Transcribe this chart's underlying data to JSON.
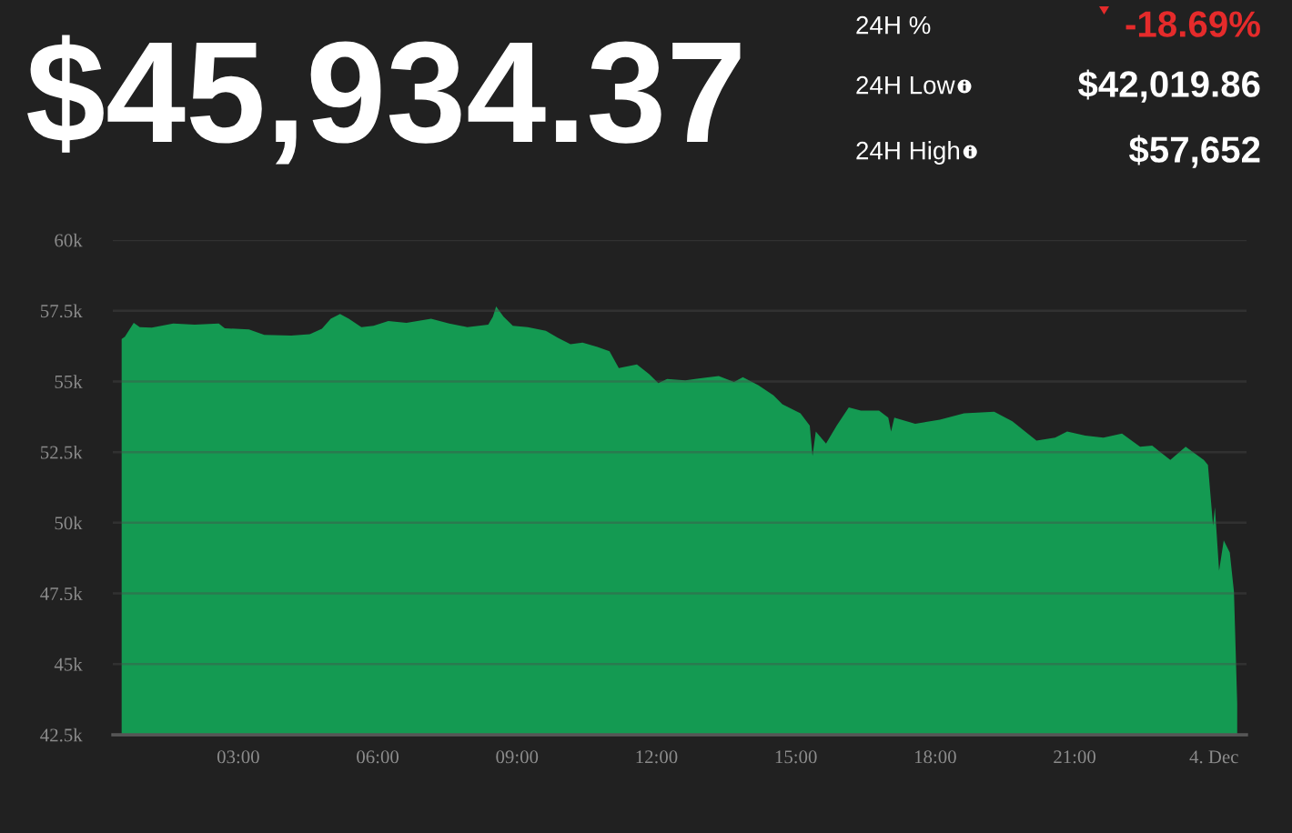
{
  "chart_data": {
    "type": "area",
    "title": "$45,934.37",
    "annotations": [
      "24H %",
      "-18.69%",
      "24H Low",
      "$42,019.86",
      "24H High",
      "$57,652"
    ],
    "series": [
      {
        "color": "#149a52",
        "x": [
          0.49,
          0.56,
          0.75,
          0.88,
          1.14,
          1.6,
          2.06,
          2.58,
          2.71,
          3.23,
          3.56,
          4.14,
          4.54,
          4.8,
          4.99,
          5.19,
          5.38,
          5.65,
          5.91,
          6.23,
          6.62,
          7.15,
          7.54,
          7.93,
          8.38,
          8.48,
          8.55,
          8.71,
          8.91,
          9.23,
          9.62,
          9.88,
          10.15,
          10.41,
          10.73,
          10.99,
          11.19,
          11.58,
          11.84,
          12.04,
          12.23,
          12.62,
          13.02,
          13.34,
          13.67,
          13.86,
          14.19,
          14.52,
          14.71,
          15.1,
          15.3,
          15.36,
          15.43,
          15.65,
          15.88,
          16.14,
          16.4,
          16.79,
          16.99,
          17.05,
          17.12,
          17.57,
          18.1,
          18.62,
          19.27,
          19.66,
          20.18,
          20.58,
          20.84,
          21.23,
          21.62,
          22.02,
          22.41,
          22.67,
          23.06,
          23.39,
          23.78,
          23.87,
          23.98,
          24.02,
          24.11,
          24.21,
          24.34,
          24.43,
          24.5
        ],
        "values": [
          56500,
          56580,
          57070,
          56920,
          56900,
          57050,
          57010,
          57050,
          56880,
          56840,
          56650,
          56620,
          56670,
          56860,
          57220,
          57390,
          57220,
          56920,
          56970,
          57140,
          57070,
          57220,
          57050,
          56920,
          57010,
          57290,
          57650,
          57290,
          56970,
          56920,
          56790,
          56540,
          56320,
          56370,
          56220,
          56070,
          55470,
          55600,
          55260,
          54940,
          55090,
          55040,
          55130,
          55190,
          54980,
          55150,
          54870,
          54510,
          54190,
          53870,
          53440,
          52370,
          53230,
          52800,
          53440,
          54080,
          53970,
          53970,
          53720,
          53230,
          53720,
          53500,
          53650,
          53870,
          53930,
          53590,
          52910,
          53010,
          53230,
          53080,
          53010,
          53160,
          52690,
          52730,
          52220,
          52690,
          52220,
          52050,
          49910,
          50550,
          48310,
          49380,
          48950,
          47560,
          43600
        ]
      }
    ],
    "xlim": [
      0.3,
      24.7
    ],
    "xticks": [
      {
        "value": 3,
        "label": "03:00"
      },
      {
        "value": 6,
        "label": "06:00"
      },
      {
        "value": 9,
        "label": "09:00"
      },
      {
        "value": 12,
        "label": "12:00"
      },
      {
        "value": 15,
        "label": "15:00"
      },
      {
        "value": 18,
        "label": "18:00"
      },
      {
        "value": 21,
        "label": "21:00"
      },
      {
        "value": 24,
        "label": "4. Dec"
      }
    ],
    "ylim": [
      42500,
      60000
    ],
    "yticks": [
      {
        "value": 42500,
        "label": "42.5k"
      },
      {
        "value": 45000,
        "label": "45k"
      },
      {
        "value": 47500,
        "label": "47.5k"
      },
      {
        "value": 50000,
        "label": "50k"
      },
      {
        "value": 52500,
        "label": "52.5k"
      },
      {
        "value": 55000,
        "label": "55k"
      },
      {
        "value": 57500,
        "label": "57.5k"
      },
      {
        "value": 60000,
        "label": "60k"
      }
    ],
    "grid": "y"
  }
}
